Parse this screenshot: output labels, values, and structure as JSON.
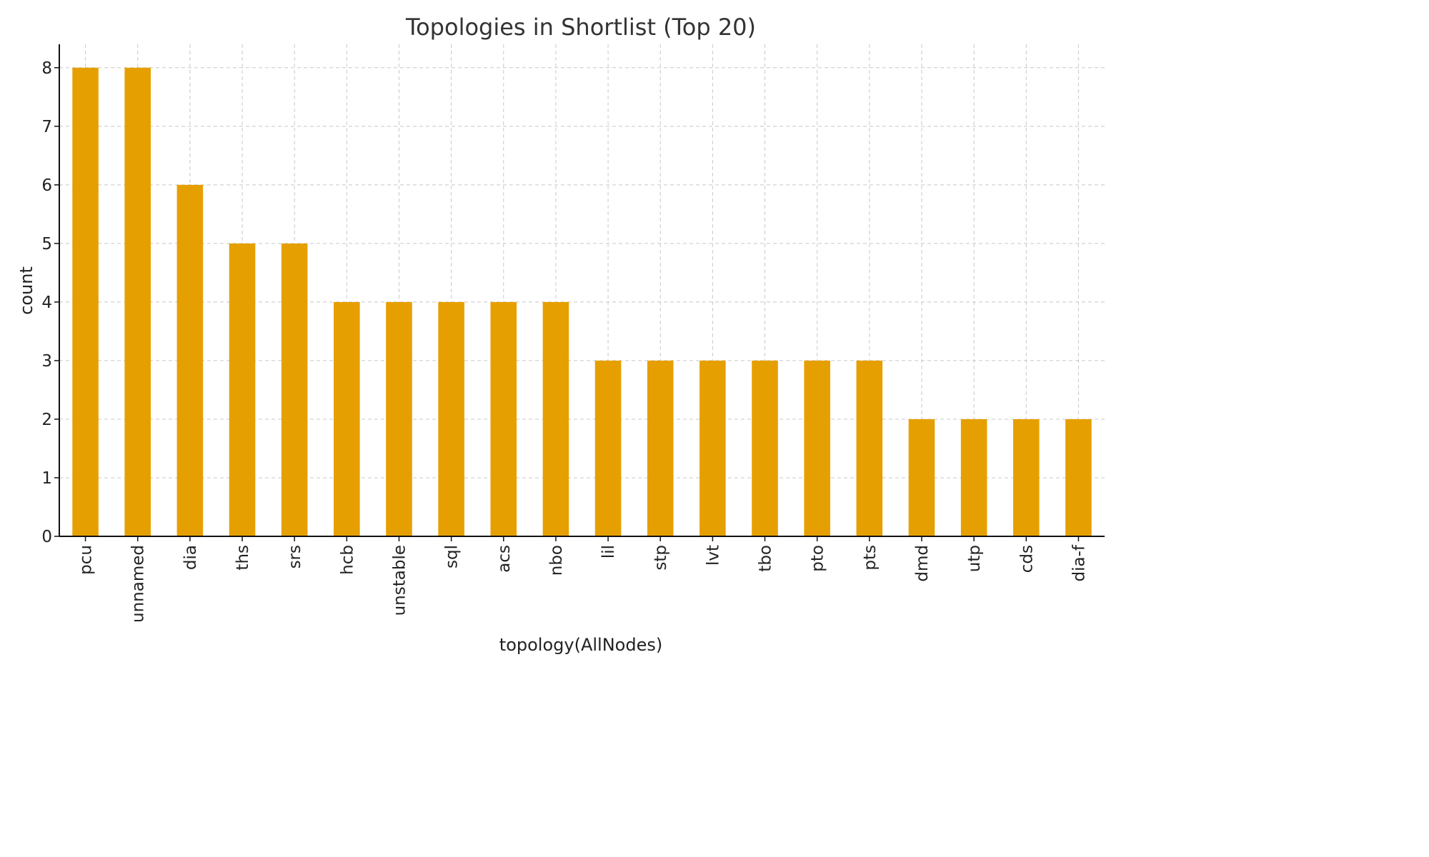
{
  "chart_data": {
    "type": "bar",
    "title": "Topologies in Shortlist (Top 20)",
    "xlabel": "topology(AllNodes)",
    "ylabel": "count",
    "categories": [
      "pcu",
      "unnamed",
      "dia",
      "ths",
      "srs",
      "hcb",
      "unstable",
      "sql",
      "acs",
      "nbo",
      "lil",
      "stp",
      "lvt",
      "tbo",
      "pto",
      "pts",
      "dmd",
      "utp",
      "cds",
      "dia-f"
    ],
    "values": [
      8,
      8,
      6,
      5,
      5,
      4,
      4,
      4,
      4,
      4,
      3,
      3,
      3,
      3,
      3,
      3,
      2,
      2,
      2,
      2
    ],
    "yticks": [
      0,
      1,
      2,
      3,
      4,
      5,
      6,
      7,
      8
    ],
    "ylim": [
      0,
      8.4
    ],
    "grid": true,
    "bar_color": "#E69F00"
  }
}
